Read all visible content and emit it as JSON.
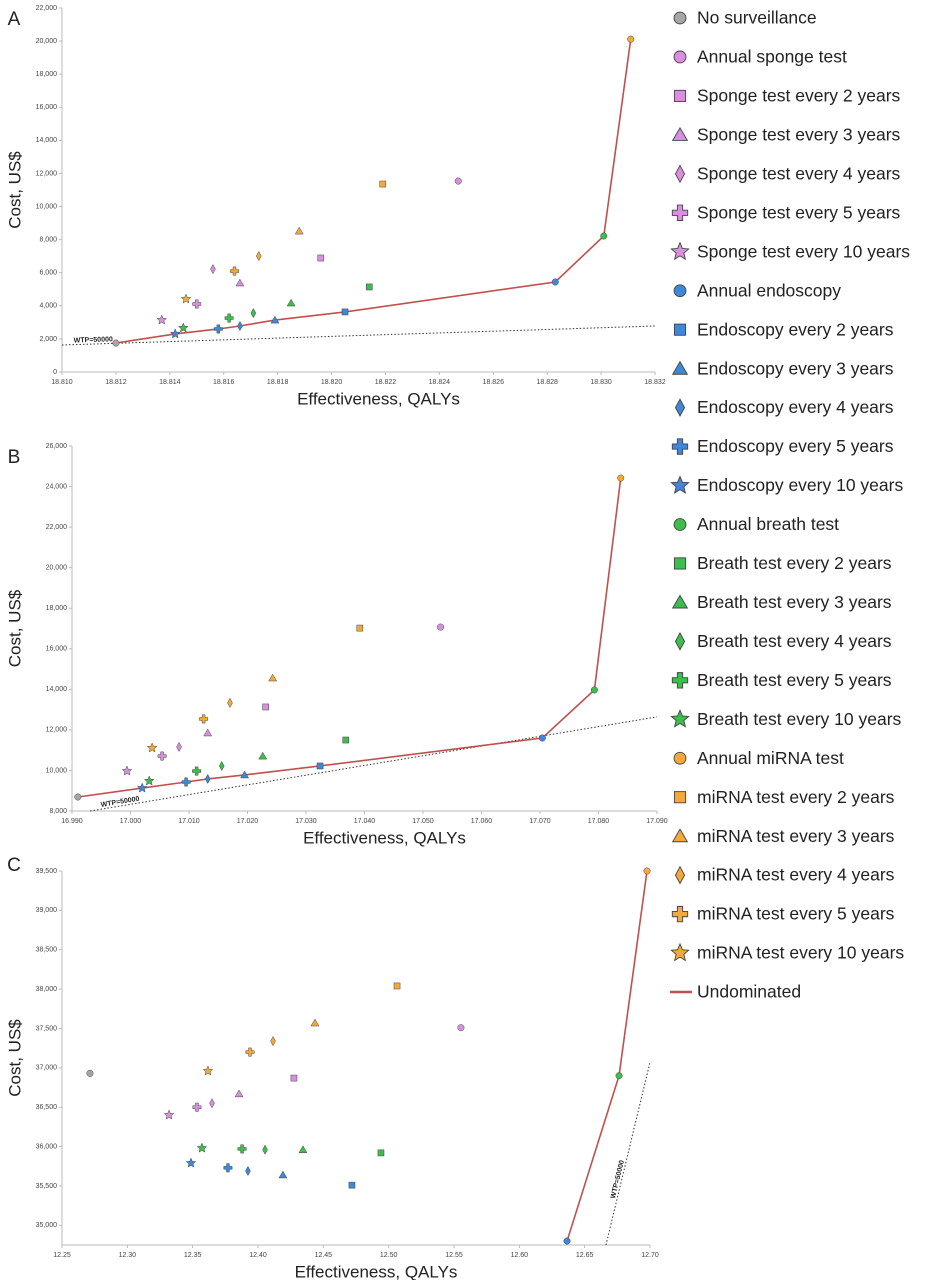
{
  "chart_data": [
    {
      "type": "scatter",
      "label": "A",
      "xlabel": "Effectiveness, QALYs",
      "ylabel": "Cost, US$",
      "xlim": [
        18.81,
        18.832
      ],
      "ylim": [
        0,
        22000
      ],
      "xticks": [
        {
          "value": 18.81,
          "label": "18.810"
        },
        18.812,
        18.814,
        18.816,
        18.818,
        {
          "value": 18.82,
          "label": "18.820"
        },
        18.822,
        18.824,
        18.826,
        18.828,
        {
          "value": 18.83,
          "label": "18.830"
        },
        18.832
      ],
      "yticks": [
        0,
        {
          "value": 2000,
          "label": "2,000"
        },
        {
          "value": 4000,
          "label": "4,000"
        },
        {
          "value": 6000,
          "label": "6,000"
        },
        {
          "value": 8000,
          "label": "8,000"
        },
        {
          "value": 10000,
          "label": "10,000"
        },
        {
          "value": 12000,
          "label": "12,000"
        },
        {
          "value": 14000,
          "label": "14,000"
        },
        {
          "value": 16000,
          "label": "16,000"
        },
        {
          "value": 18000,
          "label": "18,000"
        },
        {
          "value": 20000,
          "label": "20,000"
        },
        {
          "value": 22000,
          "label": "22,000"
        }
      ],
      "wtp": {
        "label": "WTP=50000",
        "x": [
          18.81,
          18.832
        ],
        "values": [
          1630,
          2780
        ]
      },
      "series": [
        {
          "name": "No surveillance",
          "color": "#a6a6a6",
          "marker": "circle",
          "x": [
            18.812
          ],
          "values": [
            1750
          ]
        },
        {
          "name": "Annual sponge test",
          "color": "#d98fe0",
          "marker": "circle",
          "x": [
            18.8247
          ],
          "values": [
            11540
          ]
        },
        {
          "name": "Sponge test every 2 years",
          "color": "#d98fe0",
          "marker": "square",
          "x": [
            18.8196
          ],
          "values": [
            6890
          ]
        },
        {
          "name": "Sponge test every 3 years",
          "color": "#d98fe0",
          "marker": "triangle",
          "x": [
            18.8166
          ],
          "values": [
            5380
          ]
        },
        {
          "name": "Sponge test every 4 years",
          "color": "#d98fe0",
          "marker": "diamond",
          "x": [
            18.8156
          ],
          "values": [
            6220
          ]
        },
        {
          "name": "Sponge test every 5 years",
          "color": "#d98fe0",
          "marker": "plus",
          "x": [
            18.815
          ],
          "values": [
            4110
          ]
        },
        {
          "name": "Sponge test every 10 years",
          "color": "#d98fe0",
          "marker": "star",
          "x": [
            18.8137
          ],
          "values": [
            3140
          ]
        },
        {
          "name": "Annual endoscopy",
          "color": "#3f87d9",
          "marker": "circle",
          "x": [
            18.8283
          ],
          "values": [
            5440
          ]
        },
        {
          "name": "Endoscopy every 2 years",
          "color": "#3f87d9",
          "marker": "square",
          "x": [
            18.8205
          ],
          "values": [
            3630
          ]
        },
        {
          "name": "Endoscopy every 3 years",
          "color": "#3f87d9",
          "marker": "triangle",
          "x": [
            18.8179
          ],
          "values": [
            3140
          ]
        },
        {
          "name": "Endoscopy every 4 years",
          "color": "#3f87d9",
          "marker": "diamond",
          "x": [
            18.8166
          ],
          "values": [
            2780
          ]
        },
        {
          "name": "Endoscopy every 5 years",
          "color": "#3f87d9",
          "marker": "plus",
          "x": [
            18.8158
          ],
          "values": [
            2600
          ]
        },
        {
          "name": "Endoscopy every 10 years",
          "color": "#3f87d9",
          "marker": "star",
          "x": [
            18.8142
          ],
          "values": [
            2300
          ]
        },
        {
          "name": "Annual breath test",
          "color": "#3dbd4b",
          "marker": "circle",
          "x": [
            18.8301
          ],
          "values": [
            8220
          ]
        },
        {
          "name": "Breath test every 2 years",
          "color": "#3dbd4b",
          "marker": "square",
          "x": [
            18.8214
          ],
          "values": [
            5140
          ]
        },
        {
          "name": "Breath test every 3 years",
          "color": "#3dbd4b",
          "marker": "triangle",
          "x": [
            18.8185
          ],
          "values": [
            4170
          ]
        },
        {
          "name": "Breath test every 4 years",
          "color": "#3dbd4b",
          "marker": "diamond",
          "x": [
            18.8171
          ],
          "values": [
            3560
          ]
        },
        {
          "name": "Breath test every 5 years",
          "color": "#3dbd4b",
          "marker": "plus",
          "x": [
            18.8162
          ],
          "values": [
            3260
          ]
        },
        {
          "name": "Breath test every 10 years",
          "color": "#3dbd4b",
          "marker": "star",
          "x": [
            18.8145
          ],
          "values": [
            2660
          ]
        },
        {
          "name": "Annual miRNA test",
          "color": "#f4a83a",
          "marker": "circle",
          "x": [
            18.8311
          ],
          "values": [
            20120
          ]
        },
        {
          "name": "miRNA test every 2 years",
          "color": "#f4a83a",
          "marker": "square",
          "x": [
            18.8219
          ],
          "values": [
            11360
          ]
        },
        {
          "name": "miRNA test every 3 years",
          "color": "#f4a83a",
          "marker": "triangle",
          "x": [
            18.8188
          ],
          "values": [
            8520
          ]
        },
        {
          "name": "miRNA test every 4 years",
          "color": "#f4a83a",
          "marker": "diamond",
          "x": [
            18.8173
          ],
          "values": [
            7010
          ]
        },
        {
          "name": "miRNA test every 5 years",
          "color": "#f4a83a",
          "marker": "plus",
          "x": [
            18.8164
          ],
          "values": [
            6100
          ]
        },
        {
          "name": "miRNA test every 10 years",
          "color": "#f4a83a",
          "marker": "star",
          "x": [
            18.8146
          ],
          "values": [
            4410
          ]
        },
        {
          "name": "Undominated",
          "color": "#c0504d",
          "marker": "line",
          "x": [
            18.812,
            18.8142,
            18.8158,
            18.8166,
            18.8179,
            18.8205,
            18.8283,
            18.8301,
            18.8311
          ],
          "values": [
            1750,
            2300,
            2600,
            2780,
            3140,
            3630,
            5440,
            8220,
            20120
          ]
        }
      ]
    },
    {
      "type": "scatter",
      "label": "B",
      "xlabel": "Effectiveness, QALYs",
      "ylabel": "Cost, US$",
      "xlim": [
        16.99,
        17.09
      ],
      "ylim": [
        8000,
        26000
      ],
      "xticks": [
        {
          "value": 16.99,
          "label": "16.990"
        },
        {
          "value": 17.0,
          "label": "17.000"
        },
        {
          "value": 17.01,
          "label": "17.010"
        },
        {
          "value": 17.02,
          "label": "17.020"
        },
        {
          "value": 17.03,
          "label": "17.030"
        },
        {
          "value": 17.04,
          "label": "17.040"
        },
        {
          "value": 17.05,
          "label": "17.050"
        },
        {
          "value": 17.06,
          "label": "17.060"
        },
        {
          "value": 17.07,
          "label": "17.070"
        },
        {
          "value": 17.08,
          "label": "17.080"
        },
        {
          "value": 17.09,
          "label": "17.090"
        }
      ],
      "yticks": [
        {
          "value": 8000,
          "label": "8,000"
        },
        {
          "value": 10000,
          "label": "10,000"
        },
        {
          "value": 12000,
          "label": "12,000"
        },
        {
          "value": 14000,
          "label": "14,000"
        },
        {
          "value": 16000,
          "label": "16,000"
        },
        {
          "value": 18000,
          "label": "18,000"
        },
        {
          "value": 20000,
          "label": "20,000"
        },
        {
          "value": 22000,
          "label": "22,000"
        },
        {
          "value": 24000,
          "label": "24,000"
        },
        {
          "value": 26000,
          "label": "26,000"
        }
      ],
      "wtp": {
        "label": "WTP=50000",
        "x": [
          16.9931,
          17.09
        ],
        "values": [
          8000,
          12640
        ]
      },
      "series": [
        {
          "x": [
            16.991
          ],
          "values": [
            8690
          ]
        },
        {
          "x": [
            17.053
          ],
          "values": [
            17070
          ]
        },
        {
          "x": [
            17.0231
          ],
          "values": [
            13130
          ]
        },
        {
          "x": [
            17.0132
          ],
          "values": [
            11850
          ]
        },
        {
          "x": [
            17.0083
          ],
          "values": [
            11160
          ]
        },
        {
          "x": [
            17.0054
          ],
          "values": [
            10710
          ]
        },
        {
          "x": [
            16.9994
          ],
          "values": [
            9970
          ]
        },
        {
          "x": [
            17.0704
          ],
          "values": [
            11600
          ]
        },
        {
          "x": [
            17.0324
          ],
          "values": [
            10220
          ]
        },
        {
          "x": [
            17.0195
          ],
          "values": [
            9780
          ]
        },
        {
          "x": [
            17.0132
          ],
          "values": [
            9580
          ]
        },
        {
          "x": [
            17.0095
          ],
          "values": [
            9430
          ]
        },
        {
          "x": [
            17.002
          ],
          "values": [
            9130
          ]
        },
        {
          "x": [
            17.0793
          ],
          "values": [
            13970
          ]
        },
        {
          "x": [
            17.0368
          ],
          "values": [
            11500
          ]
        },
        {
          "x": [
            17.0226
          ],
          "values": [
            10710
          ]
        },
        {
          "x": [
            17.0156
          ],
          "values": [
            10220
          ]
        },
        {
          "x": [
            17.0113
          ],
          "values": [
            9970
          ]
        },
        {
          "x": [
            17.0032
          ],
          "values": [
            9480
          ]
        },
        {
          "x": [
            17.0838
          ],
          "values": [
            24420
          ]
        },
        {
          "x": [
            17.0392
          ],
          "values": [
            17020
          ]
        },
        {
          "x": [
            17.0243
          ],
          "values": [
            14560
          ]
        },
        {
          "x": [
            17.017
          ],
          "values": [
            13330
          ]
        },
        {
          "x": [
            17.0125
          ],
          "values": [
            12540
          ]
        },
        {
          "x": [
            17.0037
          ],
          "values": [
            11110
          ]
        },
        {
          "x": [
            16.991,
            17.002,
            17.0095,
            17.0132,
            17.0195,
            17.0324,
            17.0704,
            17.0793,
            17.0838
          ],
          "values": [
            8690,
            9130,
            9430,
            9580,
            9780,
            10220,
            11600,
            13970,
            24420
          ]
        }
      ]
    },
    {
      "type": "scatter",
      "label": "C",
      "xlabel": "Effectiveness, QALYs",
      "ylabel": "Cost, US$",
      "xlim": [
        12.25,
        12.7
      ],
      "ylim": [
        34750,
        39500
      ],
      "xticks": [
        12.25,
        {
          "value": 12.3,
          "label": "12.30"
        },
        12.35,
        {
          "value": 12.4,
          "label": "12.40"
        },
        12.45,
        {
          "value": 12.5,
          "label": "12.50"
        },
        12.55,
        {
          "value": 12.6,
          "label": "12.60"
        },
        12.65,
        {
          "value": 12.7,
          "label": "12.70"
        }
      ],
      "yticks": [
        {
          "value": 35000,
          "label": "35,000"
        },
        {
          "value": 35500,
          "label": "35,500"
        },
        {
          "value": 36000,
          "label": "36,000"
        },
        {
          "value": 36500,
          "label": "36,500"
        },
        {
          "value": 37000,
          "label": "37,000"
        },
        {
          "value": 37500,
          "label": "37,500"
        },
        {
          "value": 38000,
          "label": "38,000"
        },
        {
          "value": 38500,
          "label": "38,500"
        },
        {
          "value": 39000,
          "label": "39,000"
        },
        {
          "value": 39500,
          "label": "39,500"
        }
      ],
      "wtp": {
        "label": "WTP=50000",
        "x": [
          12.6663,
          12.7
        ],
        "values": [
          34750,
          37070
        ]
      },
      "series": [
        {
          "x": [
            12.2714
          ],
          "values": [
            36930
          ]
        },
        {
          "x": [
            12.5553
          ],
          "values": [
            37510
          ]
        },
        {
          "x": [
            12.4275
          ],
          "values": [
            36870
          ]
        },
        {
          "x": [
            12.3855
          ],
          "values": [
            36670
          ]
        },
        {
          "x": [
            12.3648
          ],
          "values": [
            36550
          ]
        },
        {
          "x": [
            12.3533
          ],
          "values": [
            36500
          ]
        },
        {
          "x": [
            12.3319
          ],
          "values": [
            36400
          ]
        },
        {
          "x": [
            12.6365
          ],
          "values": [
            34800
          ]
        },
        {
          "x": [
            12.4719
          ],
          "values": [
            35510
          ]
        },
        {
          "x": [
            12.4191
          ],
          "values": [
            35640
          ]
        },
        {
          "x": [
            12.3923
          ],
          "values": [
            35690
          ]
        },
        {
          "x": [
            12.377
          ],
          "values": [
            35730
          ]
        },
        {
          "x": [
            12.3487
          ],
          "values": [
            35790
          ]
        },
        {
          "x": [
            12.6763
          ],
          "values": [
            36900
          ]
        },
        {
          "x": [
            12.4941
          ],
          "values": [
            35920
          ]
        },
        {
          "x": [
            12.4344
          ],
          "values": [
            35960
          ]
        },
        {
          "x": [
            12.4054
          ],
          "values": [
            35960
          ]
        },
        {
          "x": [
            12.3878
          ],
          "values": [
            35970
          ]
        },
        {
          "x": [
            12.3571
          ],
          "values": [
            35980
          ]
        },
        {
          "x": [
            12.6977
          ],
          "values": [
            39500
          ]
        },
        {
          "x": [
            12.5064
          ],
          "values": [
            38040
          ]
        },
        {
          "x": [
            12.4436
          ],
          "values": [
            37570
          ]
        },
        {
          "x": [
            12.4115
          ],
          "values": [
            37340
          ]
        },
        {
          "x": [
            12.3939
          ],
          "values": [
            37200
          ]
        },
        {
          "x": [
            12.3617
          ],
          "values": [
            36960
          ]
        },
        {
          "x": [
            12.6365,
            12.6763,
            12.6977
          ],
          "values": [
            34800,
            36900,
            39500
          ]
        }
      ]
    }
  ]
}
